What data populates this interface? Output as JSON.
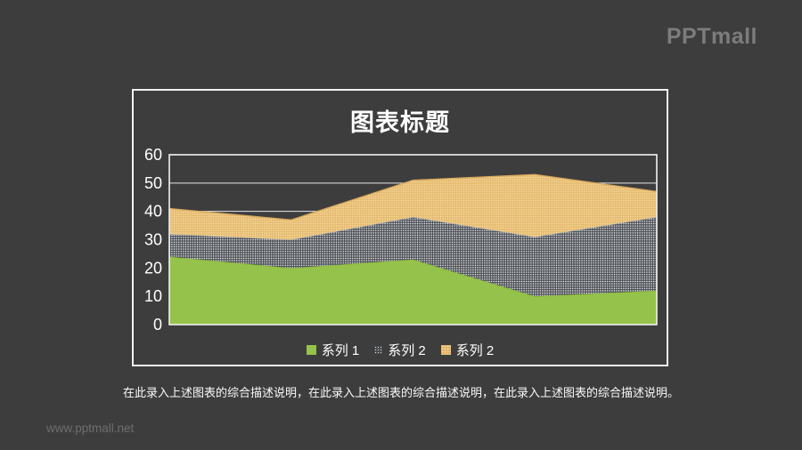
{
  "slide": {
    "logo_text": "PPTmall",
    "watermark": "www.pptmall.net",
    "description": "在此录入上述图表的综合描述说明，在此录入上述图表的综合描述说明，在此录入上述图表的综合描述说明。"
  },
  "colors": {
    "background": "#3d3d3d",
    "frame_border": "#f2f2f2",
    "gridline": "#e9e9e9",
    "axis_text": "#ffffff",
    "title_text": "#ffffff",
    "logo": "#7c7c7c",
    "watermark": "#6e6e6e",
    "series1_green": "#95c24a",
    "series2_gray_base": "#4a4e54",
    "series2_dot": "#ffffff",
    "series3_orange_base": "#e5b96e",
    "series3_dot": "#fae3ad"
  },
  "chart_data": {
    "type": "area",
    "stacked": true,
    "title": "图表标题",
    "x_axis": {
      "labels_visible": false,
      "num_points": 5
    },
    "y_axis": {
      "ticks": [
        0,
        10,
        20,
        30,
        40,
        50,
        60
      ]
    },
    "ylim": [
      0,
      60
    ],
    "grid": "horizontal",
    "legend_position": "bottom",
    "series": [
      {
        "name": "系列 1",
        "values": [
          24,
          20,
          23,
          10,
          12
        ],
        "fill": "#95c24a",
        "pattern": "solid",
        "edge": "#86b23a"
      },
      {
        "name": "系列 2",
        "values": [
          8,
          10,
          15,
          21,
          26
        ],
        "fill": "#4a4e54",
        "dot": "#ffffff",
        "pattern": "dots",
        "edge": "#a7adb5"
      },
      {
        "name": "系列 2",
        "values": [
          9,
          7,
          13,
          22,
          9
        ],
        "fill": "#e5b96e",
        "dot": "#fae3ad",
        "pattern": "dots",
        "edge": "#d6a75c"
      }
    ],
    "cumulative_tops": [
      [
        24,
        20,
        23,
        10,
        12
      ],
      [
        32,
        30,
        38,
        31,
        38
      ],
      [
        41,
        37,
        51,
        53,
        47
      ]
    ]
  }
}
